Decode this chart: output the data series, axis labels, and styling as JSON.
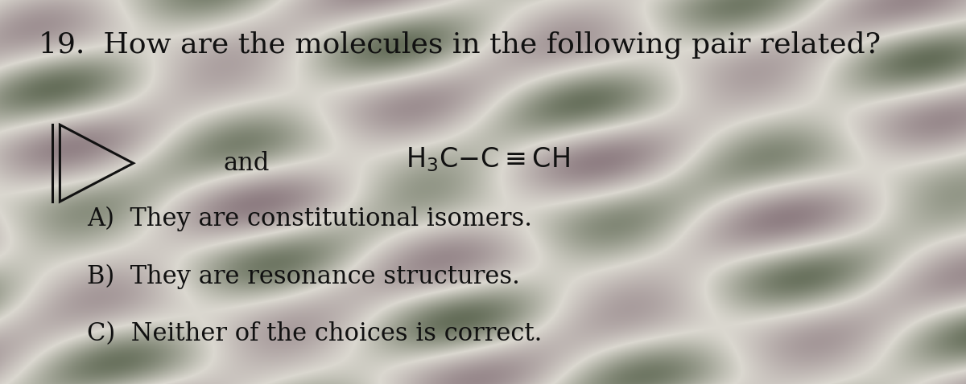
{
  "title": "19.  How are the molecules in the following pair related?",
  "title_fontsize": 26,
  "bg_color_base": "#c8d8b0",
  "text_color": "#111111",
  "options": [
    "A)  They are constitutional isomers.",
    "B)  They are resonance structures.",
    "C)  Neither of the choices is correct."
  ],
  "option_fontsize": 22,
  "molecule_fontsize": 22,
  "and_fontsize": 22,
  "wave_green": "#7ab87a",
  "wave_pink": "#e8c8d0",
  "wave_white": "#f0f0f8"
}
